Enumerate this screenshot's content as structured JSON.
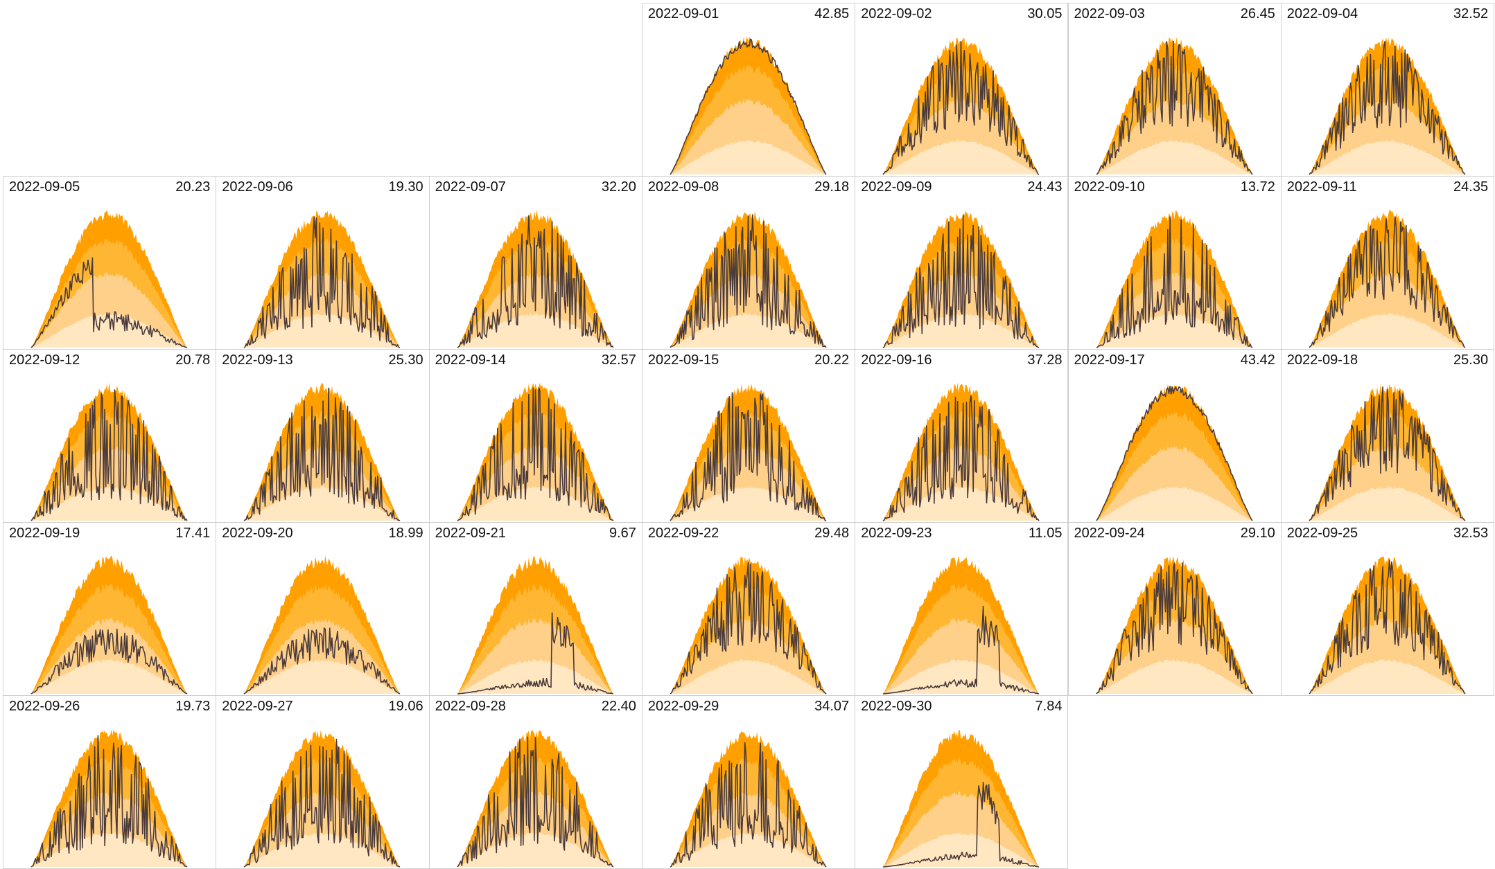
{
  "colors": {
    "band_outer": "#ff9f00",
    "band_mid": "#ffb733",
    "band_inner": "#ffd08a",
    "band_base": "#ffe7c2",
    "actual_line": "#4a3a3a",
    "cell_border": "#cfcfcf"
  },
  "chart_data": {
    "type": "area",
    "layout": "calendar-grid",
    "month": "2022-09",
    "week_starts_on": "Thursday",
    "days": [
      {
        "date": "2022-09-01",
        "total": "42.85",
        "profile": "clear"
      },
      {
        "date": "2022-09-02",
        "total": "30.05",
        "profile": "mixed"
      },
      {
        "date": "2022-09-03",
        "total": "26.45",
        "profile": "mixed"
      },
      {
        "date": "2022-09-04",
        "total": "32.52",
        "profile": "mixed"
      },
      {
        "date": "2022-09-05",
        "total": "20.23",
        "profile": "cloudy"
      },
      {
        "date": "2022-09-06",
        "total": "19.30",
        "profile": "spiky"
      },
      {
        "date": "2022-09-07",
        "total": "32.20",
        "profile": "spiky"
      },
      {
        "date": "2022-09-08",
        "total": "29.18",
        "profile": "spiky"
      },
      {
        "date": "2022-09-09",
        "total": "24.43",
        "profile": "spiky"
      },
      {
        "date": "2022-09-10",
        "total": "13.72",
        "profile": "spiky"
      },
      {
        "date": "2022-09-11",
        "total": "24.35",
        "profile": "mixed"
      },
      {
        "date": "2022-09-12",
        "total": "20.78",
        "profile": "spiky"
      },
      {
        "date": "2022-09-13",
        "total": "25.30",
        "profile": "spiky"
      },
      {
        "date": "2022-09-14",
        "total": "32.57",
        "profile": "spiky"
      },
      {
        "date": "2022-09-15",
        "total": "20.22",
        "profile": "spiky"
      },
      {
        "date": "2022-09-16",
        "total": "37.28",
        "profile": "spiky"
      },
      {
        "date": "2022-09-17",
        "total": "43.42",
        "profile": "clear"
      },
      {
        "date": "2022-09-18",
        "total": "25.30",
        "profile": "mixed"
      },
      {
        "date": "2022-09-19",
        "total": "17.41",
        "profile": "low"
      },
      {
        "date": "2022-09-20",
        "total": "18.99",
        "profile": "low"
      },
      {
        "date": "2022-09-21",
        "total": "9.67",
        "profile": "late"
      },
      {
        "date": "2022-09-22",
        "total": "29.48",
        "profile": "mixed"
      },
      {
        "date": "2022-09-23",
        "total": "11.05",
        "profile": "late"
      },
      {
        "date": "2022-09-24",
        "total": "29.10",
        "profile": "mixed"
      },
      {
        "date": "2022-09-25",
        "total": "32.53",
        "profile": "mixed"
      },
      {
        "date": "2022-09-26",
        "total": "19.73",
        "profile": "spiky"
      },
      {
        "date": "2022-09-27",
        "total": "19.06",
        "profile": "spiky"
      },
      {
        "date": "2022-09-28",
        "total": "22.40",
        "profile": "spiky"
      },
      {
        "date": "2022-09-29",
        "total": "34.07",
        "profile": "spiky"
      },
      {
        "date": "2022-09-30",
        "total": "7.84",
        "profile": "late"
      }
    ],
    "grid": false,
    "legend": "none"
  }
}
